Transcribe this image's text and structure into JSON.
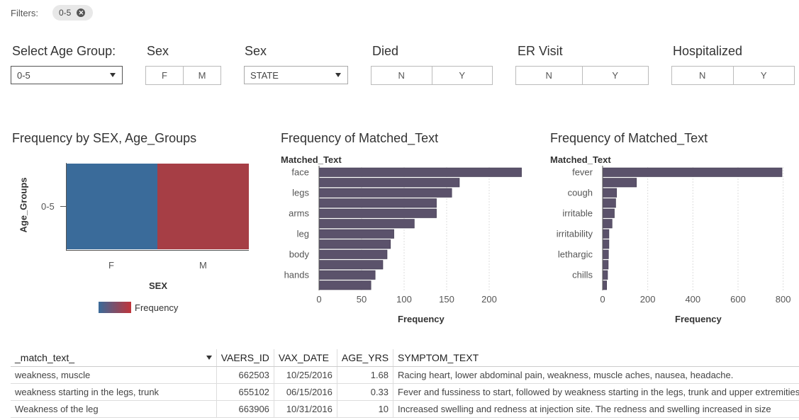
{
  "filters": {
    "label": "Filters:",
    "chip": "0-5"
  },
  "controls": {
    "age_group": {
      "label": "Select Age Group:",
      "value": "0-5"
    },
    "sex_buttons": {
      "label": "Sex",
      "options": [
        "F",
        "M"
      ]
    },
    "sex_dropdown": {
      "label": "Sex",
      "value": "STATE"
    },
    "died": {
      "label": "Died",
      "options": [
        "N",
        "Y"
      ]
    },
    "er_visit": {
      "label": "ER Visit",
      "options": [
        "N",
        "Y"
      ]
    },
    "hospitalized": {
      "label": "Hospitalized",
      "options": [
        "N",
        "Y"
      ]
    }
  },
  "heatmap": {
    "title": "Frequency by SEX, Age_Groups",
    "ylabel": "Age_Groups",
    "xlabel": "SEX",
    "y_tick": "0-5",
    "x_ticks": [
      "F",
      "M"
    ],
    "legend_label": "Frequency",
    "colors": {
      "F": "#3a6b9a",
      "M": "#a63e45",
      "gradient_start": "#3a6b9a",
      "gradient_end": "#c0343a"
    }
  },
  "chart_data": [
    {
      "type": "bar",
      "orientation": "horizontal",
      "title": "Frequency of Matched_Text",
      "ylabel": "Matched_Text",
      "xlabel": "Frequency",
      "xlim": [
        0,
        240
      ],
      "xticks": [
        0,
        50,
        100,
        150,
        200
      ],
      "category_labels": [
        "face",
        "legs",
        "arms",
        "leg",
        "body",
        "hands"
      ],
      "values": [
        238,
        165,
        156,
        138,
        138,
        112,
        88,
        84,
        80,
        75,
        66,
        61
      ],
      "bar_color": "#5b526b"
    },
    {
      "type": "bar",
      "orientation": "horizontal",
      "title": "Frequency of Matched_Text",
      "ylabel": "Matched_Text",
      "xlabel": "Frequency",
      "xlim": [
        0,
        820
      ],
      "xticks": [
        0,
        200,
        400,
        600,
        800
      ],
      "category_labels": [
        "fever",
        "cough",
        "irritable",
        "irritability",
        "lethargic",
        "chills"
      ],
      "values": [
        795,
        150,
        62,
        58,
        52,
        42,
        28,
        28,
        26,
        25,
        22,
        18
      ],
      "bar_color": "#5b526b"
    }
  ],
  "table": {
    "columns": [
      "_match_text_",
      "VAERS_ID",
      "VAX_DATE",
      "AGE_YRS",
      "SYMPTOM_TEXT"
    ],
    "rows": [
      [
        "weakness, muscle",
        "662503",
        "10/25/2016",
        "1.68",
        "Racing heart, lower abdominal pain, weakness, muscle aches, nausea, headache."
      ],
      [
        "weakness starting in the legs, trunk",
        "655102",
        "06/15/2016",
        "0.33",
        "Fever and fussiness to start, followed by weakness starting in the legs, trunk and upper extremities"
      ],
      [
        "Weakness of the leg",
        "663906",
        "10/31/2016",
        "10",
        "Increased swelling and redness at injection site. The redness and swelling increased in size"
      ]
    ]
  }
}
